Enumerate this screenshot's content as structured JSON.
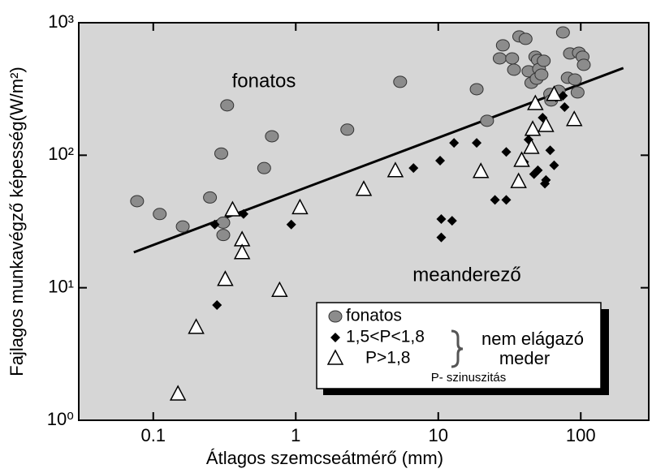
{
  "chart_data": {
    "type": "scatter",
    "x_label": "Átlagos szemcseátmérő (mm)",
    "y_label": "Fajlagos munkavégző képesség(W/m²)",
    "x_log": true,
    "y_log": true,
    "xlim": [
      0.03,
      300
    ],
    "ylim": [
      1,
      1000
    ],
    "xticks": [
      0.1,
      1,
      10,
      100
    ],
    "yticks": [
      {
        "value": 1,
        "label": "10⁰"
      },
      {
        "value": 10,
        "label": "10¹"
      },
      {
        "value": 100,
        "label": "10²"
      },
      {
        "value": 1000,
        "label": "10³"
      }
    ],
    "annotations": [
      "fonatos",
      "meanderező"
    ],
    "legend_notes": [
      "nem elágazó",
      "meder",
      "P- szinuszitás"
    ],
    "series": [
      {
        "name": "fonatos",
        "marker": "circle",
        "color": "#8c8c8c",
        "x": [
          0.077,
          0.111,
          0.161,
          0.25,
          0.31,
          0.31,
          0.3,
          0.33,
          0.6,
          0.68,
          2.3,
          5.4,
          22,
          18.6,
          27,
          28.4,
          33,
          34,
          37,
          41,
          43,
          45,
          48,
          50,
          51,
          49,
          53,
          55,
          61,
          62,
          70,
          75,
          81,
          84,
          91,
          97,
          103,
          105,
          95
        ],
        "values": [
          45,
          36,
          29,
          48,
          31,
          25,
          103,
          238,
          80,
          139,
          156,
          358,
          182,
          315,
          538,
          675,
          538,
          442,
          788,
          755,
          430,
          352,
          554,
          524,
          448,
          378,
          406,
          516,
          290,
          259,
          306,
          845,
          384,
          586,
          373,
          594,
          554,
          481,
          298
        ]
      },
      {
        "name": "1,5<P<1,8",
        "marker": "diamond",
        "color": "#000000",
        "x": [
          0.27,
          0.28,
          0.43,
          0.93,
          10.5,
          12.5,
          10.5,
          6.7,
          10.3,
          12.9,
          18.6,
          25,
          30,
          30,
          40,
          43,
          47,
          50,
          54,
          56,
          57,
          61,
          65,
          67,
          75,
          77
        ],
        "values": [
          30,
          7.4,
          36,
          30,
          33,
          32,
          24,
          80,
          91,
          124,
          124,
          46,
          46,
          106,
          89,
          131,
          72,
          77,
          192,
          61,
          65,
          109,
          84,
          274,
          281,
          231
        ]
      },
      {
        "name": "P>1,8",
        "marker": "triangle",
        "color": "#ffffff",
        "x": [
          0.149,
          0.2,
          0.32,
          0.36,
          0.42,
          0.42,
          0.77,
          1.07,
          3.0,
          5.0,
          19.9,
          36.6,
          38.5,
          48,
          45,
          46,
          57,
          65,
          90
        ],
        "values": [
          1.57,
          5.0,
          11.5,
          38.5,
          22.9,
          18.3,
          9.5,
          40,
          55,
          76,
          75,
          63,
          91,
          244,
          114,
          156,
          167,
          286,
          185
        ]
      }
    ],
    "trend_line": {
      "x": [
        0.073,
        199
      ],
      "values": [
        18.5,
        455
      ],
      "color": "#000000"
    }
  }
}
